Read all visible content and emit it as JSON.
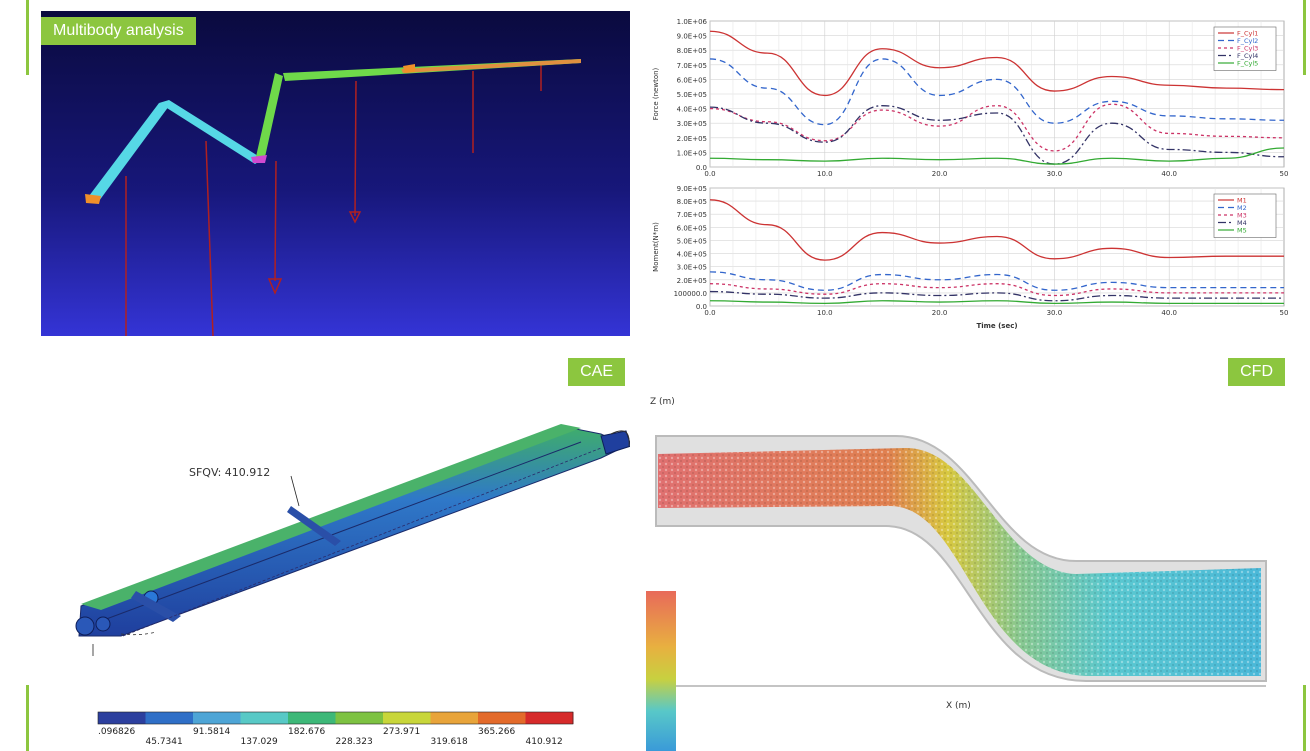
{
  "labels": {
    "multibody": "Multibody analysis",
    "cae": "CAE",
    "cfd": "CFD"
  },
  "colors": {
    "accent": "#8cc63f",
    "multibody_bg_top": "#0a0a4a",
    "multibody_bg_bottom": "#3a3ad8"
  },
  "chart_data": [
    {
      "type": "line",
      "title": "",
      "xlabel": "Time (sec)",
      "ylabel": "Force (newton)",
      "xlim": [
        0,
        50
      ],
      "ylim": [
        0,
        1000000
      ],
      "x_ticks": [
        "0.0",
        "10.0",
        "20.0",
        "30.0",
        "40.0",
        "50"
      ],
      "y_ticks": [
        "0.0",
        "1.0E+05",
        "2.0E+05",
        "3.0E+05",
        "4.0E+05",
        "5.0E+05",
        "6.0E+05",
        "7.0E+05",
        "8.0E+05",
        "9.0E+05",
        "1.0E+06"
      ],
      "legend_position": "top-right",
      "x": [
        0,
        5,
        10,
        15,
        20,
        25,
        30,
        35,
        40,
        45,
        50
      ],
      "series": [
        {
          "name": "F_Cyl1",
          "color": "#cc3333",
          "dash": "",
          "values": [
            930000,
            780000,
            490000,
            810000,
            680000,
            750000,
            520000,
            620000,
            560000,
            540000,
            530000
          ]
        },
        {
          "name": "F_Cyl2",
          "color": "#3366cc",
          "dash": "6,4",
          "values": [
            740000,
            540000,
            290000,
            740000,
            490000,
            600000,
            300000,
            450000,
            350000,
            330000,
            320000
          ]
        },
        {
          "name": "F_Cyl3",
          "color": "#cc3366",
          "dash": "3,3",
          "values": [
            400000,
            310000,
            180000,
            390000,
            280000,
            420000,
            110000,
            430000,
            230000,
            210000,
            200000
          ]
        },
        {
          "name": "F_Cyl4",
          "color": "#333366",
          "dash": "8,3,2,3",
          "values": [
            410000,
            300000,
            170000,
            420000,
            320000,
            370000,
            20000,
            300000,
            120000,
            100000,
            70000
          ]
        },
        {
          "name": "F_Cyl5",
          "color": "#33aa33",
          "dash": "",
          "values": [
            60000,
            50000,
            40000,
            60000,
            50000,
            60000,
            20000,
            60000,
            40000,
            60000,
            130000
          ]
        }
      ]
    },
    {
      "type": "line",
      "title": "",
      "xlabel": "Time (sec)",
      "ylabel": "Moment(N*m)",
      "xlim": [
        0,
        50
      ],
      "ylim": [
        0,
        900000
      ],
      "x_ticks": [
        "0.0",
        "10.0",
        "20.0",
        "30.0",
        "40.0",
        "50"
      ],
      "y_ticks": [
        "0.0",
        "100000.0",
        "2.0E+05",
        "3.0E+05",
        "4.0E+05",
        "5.0E+05",
        "6.0E+05",
        "7.0E+05",
        "8.0E+05",
        "9.0E+05"
      ],
      "legend_position": "top-right",
      "x": [
        0,
        5,
        10,
        15,
        20,
        25,
        30,
        35,
        40,
        45,
        50
      ],
      "series": [
        {
          "name": "M1",
          "color": "#cc3333",
          "dash": "",
          "values": [
            810000,
            620000,
            350000,
            560000,
            480000,
            530000,
            360000,
            440000,
            370000,
            380000,
            380000
          ]
        },
        {
          "name": "M2",
          "color": "#3366cc",
          "dash": "6,4",
          "values": [
            260000,
            200000,
            120000,
            240000,
            200000,
            240000,
            120000,
            180000,
            140000,
            140000,
            140000
          ]
        },
        {
          "name": "M3",
          "color": "#cc3366",
          "dash": "3,3",
          "values": [
            170000,
            130000,
            90000,
            170000,
            140000,
            170000,
            80000,
            130000,
            100000,
            100000,
            100000
          ]
        },
        {
          "name": "M4",
          "color": "#333366",
          "dash": "8,3,2,3",
          "values": [
            110000,
            90000,
            60000,
            100000,
            80000,
            100000,
            40000,
            80000,
            60000,
            60000,
            60000
          ]
        },
        {
          "name": "M5",
          "color": "#33aa33",
          "dash": "",
          "values": [
            40000,
            30000,
            20000,
            40000,
            30000,
            40000,
            20000,
            30000,
            20000,
            20000,
            20000
          ]
        }
      ]
    }
  ],
  "cae": {
    "annotation": "SFQV: 410.912",
    "colorbar_colors": [
      "#2c3f9e",
      "#2f6fc7",
      "#4ea5d6",
      "#58c9c6",
      "#3db878",
      "#7dc242",
      "#c8d63a",
      "#e8a43a",
      "#e36a2a",
      "#d62a2a"
    ],
    "colorbar_top_labels": [
      ".096826",
      "91.5814",
      "182.676",
      "273.971",
      "365.266"
    ],
    "colorbar_bottom_labels": [
      "45.7341",
      "137.029",
      "228.323",
      "319.618",
      "410.912"
    ]
  },
  "cfd": {
    "z_axis_label": "Z (m)",
    "x_axis_label": "X (m)"
  }
}
